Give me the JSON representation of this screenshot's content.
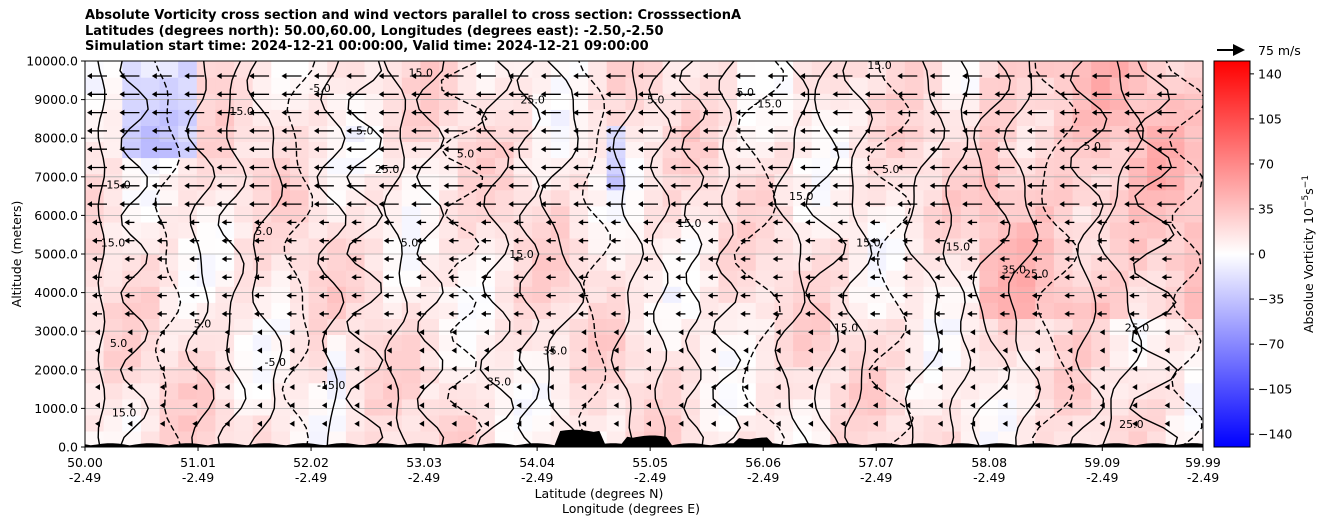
{
  "chart_data": {
    "type": "heatmap",
    "title": [
      "Absolute Vorticity cross section and wind vectors parallel to cross section: CrosssectionA",
      "Latitudes (degrees north): 50.00,60.00, Longitudes (degrees east): -2.50,-2.50",
      "Simulation start time: 2024-12-21 00:00:00, Valid time: 2024-12-21 09:00:00"
    ],
    "ylabel": "Altitude (meters)",
    "xlabel": "Latitude (degrees N)",
    "xlabel2": "Longitude (degrees E)",
    "ylim": [
      0,
      10000
    ],
    "yticks": [
      "0.0",
      "1000.0",
      "2000.0",
      "3000.0",
      "4000.0",
      "5000.0",
      "6000.0",
      "7000.0",
      "8000.0",
      "9000.0",
      "10000.0"
    ],
    "y_values": [
      0,
      1000,
      2000,
      3000,
      4000,
      5000,
      6000,
      7000,
      8000,
      9000,
      10000
    ],
    "xticks_lat": [
      "50.00",
      "51.01",
      "52.02",
      "53.03",
      "54.04",
      "55.05",
      "56.06",
      "57.07",
      "58.08",
      "59.09",
      "59.99"
    ],
    "xticks_lon": [
      "-2.49",
      "-2.49",
      "-2.49",
      "-2.49",
      "-2.49",
      "-2.49",
      "-2.49",
      "-2.49",
      "-2.49",
      "-2.49",
      "-2.49"
    ],
    "x_values": [
      50.0,
      51.01,
      52.02,
      53.03,
      54.04,
      55.05,
      56.06,
      57.07,
      58.08,
      59.09,
      59.99
    ],
    "xlim": [
      50.0,
      59.99
    ],
    "grid": "horizontal",
    "colorbar": {
      "label": "Absolue Vorticity 10",
      "label_exp": "−5",
      "label_unit": "s",
      "label_unit_exp": "−1",
      "range": [
        -150,
        150
      ],
      "ticks": [
        "140",
        "105",
        "70",
        "35",
        "0",
        "−35",
        "−70",
        "−105",
        "−140"
      ],
      "tick_values": [
        140,
        105,
        70,
        35,
        0,
        -35,
        -70,
        -105,
        -140
      ],
      "colormap": "bwr",
      "colors": {
        "low": "#0000ff",
        "mid": "#ffffff",
        "high": "#ff0000"
      }
    },
    "quiver_key": {
      "label": "75 m/s",
      "value": 75
    },
    "wind_direction": "toward decreasing latitude",
    "contour_levels": [
      -15.0,
      -5.0,
      5.0,
      15.0,
      25.0,
      35.0
    ],
    "contour_labels": [
      {
        "lat": 50.3,
        "alt": 6800,
        "text": "15.0"
      },
      {
        "lat": 50.3,
        "alt": 2700,
        "text": "5.0"
      },
      {
        "lat": 50.35,
        "alt": 900,
        "text": "15.0"
      },
      {
        "lat": 50.25,
        "alt": 5300,
        "text": "15.0"
      },
      {
        "lat": 51.05,
        "alt": 3200,
        "text": "5.0"
      },
      {
        "lat": 51.4,
        "alt": 8700,
        "text": "15.0"
      },
      {
        "lat": 51.6,
        "alt": 5600,
        "text": "5.0"
      },
      {
        "lat": 51.7,
        "alt": 2200,
        "text": "-5.0"
      },
      {
        "lat": 52.1,
        "alt": 9300,
        "text": "-5.0"
      },
      {
        "lat": 52.5,
        "alt": 8200,
        "text": "5.0"
      },
      {
        "lat": 52.2,
        "alt": 1600,
        "text": "-15.0"
      },
      {
        "lat": 53.0,
        "alt": 9700,
        "text": "15.0"
      },
      {
        "lat": 52.7,
        "alt": 7200,
        "text": "25.0"
      },
      {
        "lat": 52.9,
        "alt": 5300,
        "text": "5.0"
      },
      {
        "lat": 53.4,
        "alt": 7600,
        "text": "5.0"
      },
      {
        "lat": 54.0,
        "alt": 9000,
        "text": "25.0"
      },
      {
        "lat": 53.9,
        "alt": 5000,
        "text": "15.0"
      },
      {
        "lat": 53.7,
        "alt": 1700,
        "text": "35.0"
      },
      {
        "lat": 54.2,
        "alt": 2500,
        "text": "35.0"
      },
      {
        "lat": 55.1,
        "alt": 9000,
        "text": "5.0"
      },
      {
        "lat": 55.4,
        "alt": 5800,
        "text": "15.0"
      },
      {
        "lat": 55.9,
        "alt": 9200,
        "text": "5.0"
      },
      {
        "lat": 56.1,
        "alt": 8900,
        "text": "-15.0"
      },
      {
        "lat": 56.4,
        "alt": 6500,
        "text": "15.0"
      },
      {
        "lat": 57.1,
        "alt": 9900,
        "text": "15.0"
      },
      {
        "lat": 57.0,
        "alt": 5300,
        "text": "15.0"
      },
      {
        "lat": 57.2,
        "alt": 7200,
        "text": "5.0"
      },
      {
        "lat": 56.8,
        "alt": 3100,
        "text": "15.0"
      },
      {
        "lat": 57.8,
        "alt": 5200,
        "text": "15.0"
      },
      {
        "lat": 58.3,
        "alt": 4600,
        "text": "35.0"
      },
      {
        "lat": 58.5,
        "alt": 4500,
        "text": "25.0"
      },
      {
        "lat": 59.4,
        "alt": 3100,
        "text": "25.0"
      },
      {
        "lat": 59.0,
        "alt": 7800,
        "text": "5.0"
      },
      {
        "lat": 59.35,
        "alt": 600,
        "text": "25.0"
      }
    ]
  }
}
